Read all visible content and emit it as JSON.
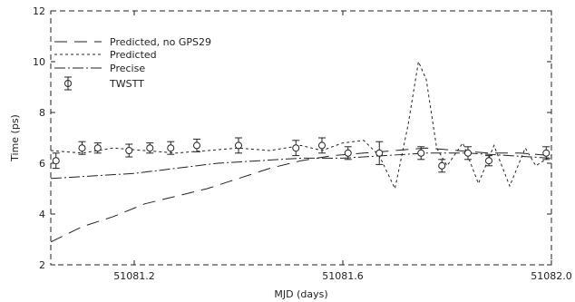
{
  "chart_data": {
    "type": "line",
    "title": "",
    "xlabel": "MJD (days)",
    "ylabel": "Time (ps)",
    "xlim": [
      51081.04,
      51082.0
    ],
    "ylim": [
      2,
      12
    ],
    "grid": false,
    "legend_position": "top-left",
    "x_ticks": [
      51081.2,
      51081.6,
      51082.0
    ],
    "x_tick_labels": [
      "51081.2",
      "51081.6",
      "51082.0"
    ],
    "y_ticks": [
      2,
      4,
      6,
      8,
      10,
      12
    ],
    "y_tick_labels": [
      "2",
      "4",
      "6",
      "8",
      "10",
      "12"
    ],
    "series": [
      {
        "name": "Predicted, no GPS29",
        "style": "long-dash",
        "x": [
          51081.04,
          51081.1,
          51081.16,
          51081.22,
          51081.28,
          51081.34,
          51081.4,
          51081.46,
          51081.52,
          51081.58,
          51081.64,
          51081.7,
          51081.76,
          51081.82,
          51081.88,
          51081.94,
          51082.0
        ],
        "y": [
          2.9,
          3.5,
          3.9,
          4.4,
          4.7,
          5.0,
          5.4,
          5.8,
          6.1,
          6.3,
          6.4,
          6.5,
          6.6,
          6.5,
          6.4,
          6.4,
          6.3
        ]
      },
      {
        "name": "Predicted",
        "style": "dash",
        "x": [
          51081.04,
          51081.1,
          51081.16,
          51081.22,
          51081.28,
          51081.34,
          51081.4,
          51081.46,
          51081.52,
          51081.56,
          51081.6,
          51081.64,
          51081.67,
          51081.7,
          51081.725,
          51081.745,
          51081.76,
          51081.78,
          51081.8,
          51081.83,
          51081.86,
          51081.89,
          51081.92,
          51081.95,
          51081.97,
          51082.0
        ],
        "y": [
          6.5,
          6.4,
          6.6,
          6.5,
          6.4,
          6.5,
          6.6,
          6.5,
          6.7,
          6.5,
          6.8,
          6.9,
          6.3,
          5.0,
          7.5,
          10.0,
          9.3,
          6.6,
          5.9,
          6.8,
          5.2,
          6.7,
          5.1,
          6.6,
          5.9,
          6.3
        ]
      },
      {
        "name": "Precise",
        "style": "dash-dot",
        "x": [
          51081.04,
          51081.12,
          51081.2,
          51081.28,
          51081.36,
          51081.44,
          51081.52,
          51081.6,
          51081.68,
          51081.76,
          51081.84,
          51081.92,
          51082.0
        ],
        "y": [
          5.4,
          5.5,
          5.6,
          5.8,
          6.0,
          6.1,
          6.2,
          6.2,
          6.3,
          6.4,
          6.4,
          6.3,
          6.2
        ]
      }
    ],
    "points": {
      "name": "TWSTT",
      "x": [
        51081.05,
        51081.1,
        51081.13,
        51081.19,
        51081.23,
        51081.27,
        51081.32,
        51081.4,
        51081.51,
        51081.56,
        51081.61,
        51081.67,
        51081.75,
        51081.79,
        51081.84,
        51081.88,
        51081.99
      ],
      "y": [
        6.1,
        6.6,
        6.6,
        6.5,
        6.6,
        6.6,
        6.7,
        6.7,
        6.6,
        6.7,
        6.4,
        6.4,
        6.4,
        5.9,
        6.4,
        6.1,
        6.4
      ],
      "err": [
        0.3,
        0.25,
        0.2,
        0.25,
        0.2,
        0.25,
        0.25,
        0.3,
        0.3,
        0.3,
        0.25,
        0.45,
        0.25,
        0.25,
        0.25,
        0.2,
        0.25
      ]
    }
  }
}
